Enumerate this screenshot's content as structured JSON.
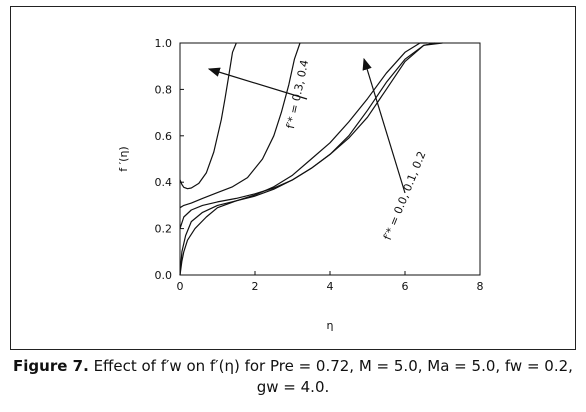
{
  "chart_data": {
    "type": "line",
    "xlabel": "η",
    "ylabel": "f ′(η)",
    "xlim": [
      0,
      8
    ],
    "ylim": [
      0,
      1.0
    ],
    "x_ticks": [
      "0",
      "2",
      "4",
      "6",
      "8"
    ],
    "y_ticks": [
      "0.0",
      "0.2",
      "0.4",
      "0.6",
      "0.8",
      "1.0"
    ],
    "grid": false,
    "series": [
      {
        "x": [
          0,
          0.05,
          0.1,
          0.2,
          0.3,
          0.5,
          0.7,
          0.9,
          1.1,
          1.2,
          1.3,
          1.4,
          1.5
        ],
        "y": [
          0.41,
          0.39,
          0.378,
          0.372,
          0.375,
          0.395,
          0.44,
          0.53,
          0.67,
          0.76,
          0.86,
          0.96,
          1.0
        ]
      },
      {
        "x": [
          0,
          0.1,
          0.3,
          0.6,
          1.0,
          1.4,
          1.8,
          2.2,
          2.5,
          2.7,
          2.9,
          3.05,
          3.2
        ],
        "y": [
          0.29,
          0.3,
          0.31,
          0.33,
          0.355,
          0.38,
          0.42,
          0.5,
          0.6,
          0.7,
          0.82,
          0.93,
          1.0
        ]
      },
      {
        "x": [
          0,
          0.1,
          0.3,
          0.6,
          1,
          1.5,
          2,
          2.5,
          3,
          3.5,
          4,
          4.5,
          5,
          5.5,
          6,
          6.5,
          7
        ],
        "y": [
          0.2,
          0.25,
          0.28,
          0.3,
          0.315,
          0.33,
          0.35,
          0.375,
          0.41,
          0.46,
          0.52,
          0.6,
          0.71,
          0.83,
          0.93,
          0.99,
          1.0
        ]
      },
      {
        "x": [
          0,
          0.05,
          0.15,
          0.3,
          0.6,
          1,
          1.5,
          2,
          2.5,
          3,
          3.5,
          4,
          4.5,
          5,
          5.5,
          6,
          6.5,
          6.8
        ],
        "y": [
          0.0,
          0.1,
          0.17,
          0.23,
          0.27,
          0.3,
          0.32,
          0.34,
          0.37,
          0.41,
          0.46,
          0.52,
          0.59,
          0.68,
          0.8,
          0.92,
          0.99,
          1.0
        ]
      },
      {
        "x": [
          0,
          0.05,
          0.1,
          0.2,
          0.4,
          0.7,
          1,
          1.5,
          2,
          2.5,
          3,
          3.5,
          4,
          4.5,
          5,
          5.5,
          6,
          6.4,
          6.6
        ],
        "y": [
          0.0,
          0.06,
          0.1,
          0.15,
          0.2,
          0.25,
          0.29,
          0.32,
          0.345,
          0.38,
          0.43,
          0.5,
          0.57,
          0.66,
          0.76,
          0.87,
          0.96,
          1.0,
          1.0
        ]
      }
    ],
    "annotations": [
      {
        "text": "f′* = 0.3, 0.4"
      },
      {
        "text": "f′* = 0.0, 0.1, 0.2"
      }
    ]
  },
  "caption": {
    "label": "Figure 7.",
    "text": "Effect of f′w on f′(η) for Pre = 0.72, M = 5.0, Ma = 5.0, fw = 0.2, gw = 4.0."
  }
}
